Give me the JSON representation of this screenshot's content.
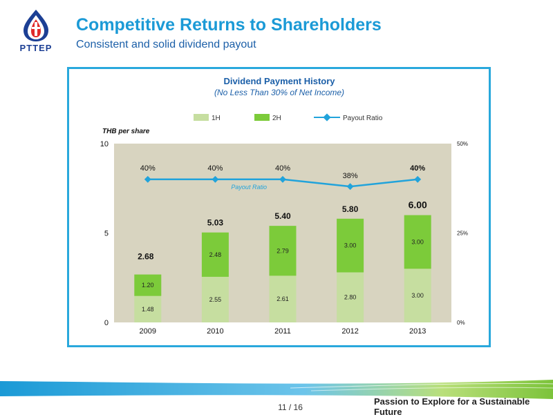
{
  "header": {
    "logo_text": "PTTEP",
    "title": "Competitive Returns to Shareholders",
    "subtitle": "Consistent and solid dividend payout"
  },
  "footer": {
    "page": "11 / 16",
    "tagline": "Passion to Explore for a Sustainable Future"
  },
  "colors": {
    "title": "#1b9ad6",
    "subtitle": "#1b5fa8",
    "frame": "#29a8dc",
    "plot_bg": "#d8d4c0",
    "bar_1h": "#c6dea0",
    "bar_2h": "#7ccb3a",
    "payout_line": "#21a3db"
  },
  "chart_data": {
    "type": "bar",
    "stacked": true,
    "title": "Dividend Payment History",
    "subtitle": "(No Less Than 30% of Net Income)",
    "ylabel": "THB per share",
    "categories": [
      "2009",
      "2010",
      "2011",
      "2012",
      "2013"
    ],
    "ylim": [
      0,
      10
    ],
    "yticks": [
      "0",
      "5",
      "10"
    ],
    "y2lim": [
      0,
      50
    ],
    "y2ticks": [
      "0%",
      "25%",
      "50%"
    ],
    "legend_position": "top",
    "legend": [
      "1H",
      "2H",
      "Payout Ratio"
    ],
    "series": [
      {
        "name": "1H",
        "values": [
          1.48,
          2.55,
          2.61,
          2.8,
          3.0
        ],
        "labels": [
          "1.48",
          "2.55",
          "2.61",
          "2.80",
          "3.00"
        ]
      },
      {
        "name": "2H",
        "values": [
          1.2,
          2.48,
          2.79,
          3.0,
          3.0
        ],
        "labels": [
          "1.20",
          "2.48",
          "2.79",
          "3.00",
          "3.00"
        ]
      }
    ],
    "totals": [
      "2.68",
      "5.03",
      "5.40",
      "5.80",
      "6.00"
    ],
    "payout_ratio": {
      "name": "Payout Ratio",
      "values": [
        40,
        40,
        40,
        38,
        40
      ],
      "labels": [
        "40%",
        "40%",
        "40%",
        "38%",
        "40%"
      ],
      "annotation": "Payout Ratio"
    }
  }
}
